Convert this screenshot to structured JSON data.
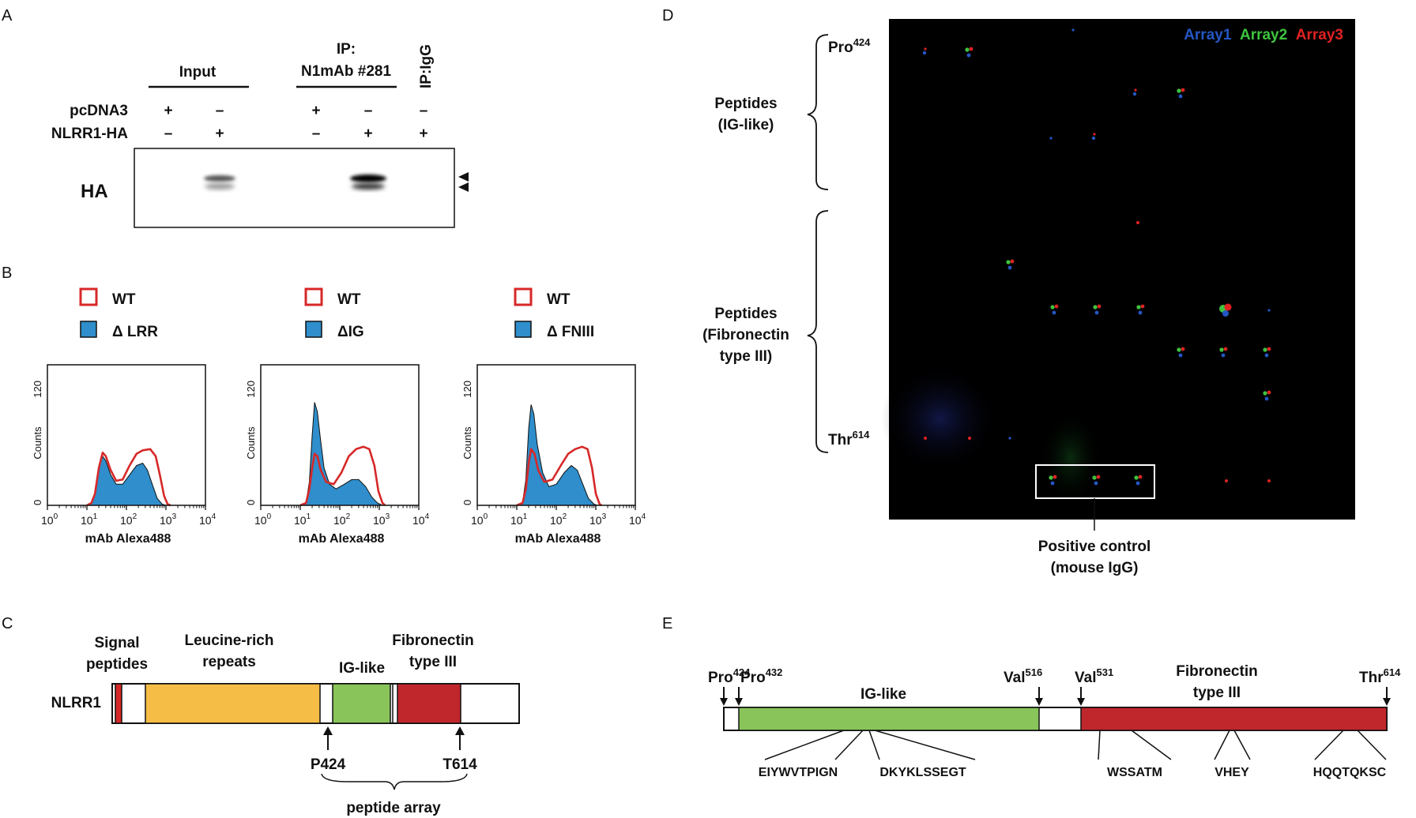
{
  "panel_letters": [
    "A",
    "B",
    "C",
    "D",
    "E"
  ],
  "panel_a": {
    "input_label": "Input",
    "ip_label_1": "IP:",
    "ip_label_2": "N1mAb #281",
    "ipigg_label": "IP:IgG",
    "row_labels": [
      "pcDNA3",
      "NLRR1-HA"
    ],
    "signs": [
      [
        "+",
        "–",
        "+",
        "–",
        "–"
      ],
      [
        "–",
        "+",
        "–",
        "+",
        "+"
      ]
    ],
    "blot_label": "HA",
    "band_lanes": [
      2,
      4
    ]
  },
  "panel_b": {
    "histograms": [
      {
        "legend_wt": "WT",
        "legend_mut": "Δ LRR",
        "counts_label": "Counts",
        "xlabel": "mAb Alexa488",
        "mut_profile": [
          [
            10,
            0
          ],
          [
            13,
            2
          ],
          [
            16,
            10
          ],
          [
            20,
            32
          ],
          [
            25,
            42
          ],
          [
            30,
            38
          ],
          [
            40,
            26
          ],
          [
            55,
            18
          ],
          [
            80,
            18
          ],
          [
            120,
            26
          ],
          [
            180,
            34
          ],
          [
            260,
            36
          ],
          [
            340,
            30
          ],
          [
            450,
            18
          ],
          [
            600,
            6
          ],
          [
            800,
            1
          ],
          [
            1000,
            0
          ]
        ],
        "wt_profile": [
          [
            10,
            0
          ],
          [
            13,
            2
          ],
          [
            16,
            10
          ],
          [
            20,
            32
          ],
          [
            25,
            45
          ],
          [
            30,
            42
          ],
          [
            40,
            30
          ],
          [
            55,
            21
          ],
          [
            80,
            22
          ],
          [
            120,
            34
          ],
          [
            180,
            44
          ],
          [
            260,
            47
          ],
          [
            400,
            48
          ],
          [
            550,
            42
          ],
          [
            700,
            26
          ],
          [
            900,
            8
          ],
          [
            1100,
            1
          ],
          [
            1300,
            0
          ]
        ]
      },
      {
        "legend_wt": "WT",
        "legend_mut": "ΔIG",
        "counts_label": "Counts",
        "xlabel": "mAb Alexa488",
        "mut_profile": [
          [
            10,
            0
          ],
          [
            14,
            2
          ],
          [
            17,
            20
          ],
          [
            20,
            60
          ],
          [
            23,
            88
          ],
          [
            27,
            80
          ],
          [
            32,
            58
          ],
          [
            40,
            32
          ],
          [
            55,
            18
          ],
          [
            80,
            14
          ],
          [
            130,
            18
          ],
          [
            200,
            22
          ],
          [
            300,
            22
          ],
          [
            450,
            16
          ],
          [
            650,
            7
          ],
          [
            900,
            2
          ],
          [
            1200,
            0
          ]
        ],
        "wt_profile": [
          [
            10,
            0
          ],
          [
            14,
            2
          ],
          [
            17,
            14
          ],
          [
            20,
            32
          ],
          [
            23,
            44
          ],
          [
            27,
            42
          ],
          [
            33,
            30
          ],
          [
            45,
            20
          ],
          [
            70,
            18
          ],
          [
            110,
            28
          ],
          [
            170,
            42
          ],
          [
            260,
            48
          ],
          [
            400,
            50
          ],
          [
            560,
            48
          ],
          [
            750,
            34
          ],
          [
            950,
            12
          ],
          [
            1200,
            2
          ],
          [
            1400,
            0
          ]
        ]
      },
      {
        "legend_wt": "WT",
        "legend_mut": "Δ FNIII",
        "counts_label": "Counts",
        "xlabel": "mAb Alexa488",
        "mut_profile": [
          [
            10,
            0
          ],
          [
            14,
            2
          ],
          [
            17,
            22
          ],
          [
            20,
            66
          ],
          [
            23,
            86
          ],
          [
            27,
            78
          ],
          [
            33,
            52
          ],
          [
            45,
            28
          ],
          [
            65,
            16
          ],
          [
            100,
            18
          ],
          [
            160,
            28
          ],
          [
            240,
            34
          ],
          [
            340,
            30
          ],
          [
            470,
            18
          ],
          [
            650,
            6
          ],
          [
            900,
            1
          ],
          [
            1100,
            0
          ]
        ],
        "wt_profile": [
          [
            10,
            0
          ],
          [
            14,
            2
          ],
          [
            17,
            14
          ],
          [
            20,
            36
          ],
          [
            23,
            48
          ],
          [
            28,
            44
          ],
          [
            35,
            30
          ],
          [
            50,
            20
          ],
          [
            80,
            22
          ],
          [
            130,
            34
          ],
          [
            200,
            44
          ],
          [
            300,
            48
          ],
          [
            450,
            50
          ],
          [
            620,
            48
          ],
          [
            800,
            32
          ],
          [
            1000,
            10
          ],
          [
            1250,
            1
          ],
          [
            1400,
            0
          ]
        ]
      }
    ],
    "ymax_label": "120",
    "ymin_label": "0",
    "xtick_bases": [
      "10",
      "10",
      "10",
      "10",
      "10"
    ],
    "xtick_exps": [
      "0",
      "1",
      "2",
      "3",
      "4"
    ]
  },
  "panel_c": {
    "title_signal": [
      "Signal",
      "peptides"
    ],
    "title_lrr": [
      "Leucine-rich",
      "repeats"
    ],
    "title_ig": "IG-like",
    "title_fn": [
      "Fibronectin",
      "type III"
    ],
    "protein_name": "NLRR1",
    "marker_p": "P424",
    "marker_t": "T614",
    "array_label": "peptide array",
    "colors": {
      "signal": "#d72828",
      "lrr": "#f5bd45",
      "ig": "#88c45a",
      "fn": "#c0272d"
    }
  },
  "panel_d": {
    "legend": [
      {
        "label": "Array1",
        "color": "#2457c4"
      },
      {
        "label": "Array2",
        "color": "#3ec43e"
      },
      {
        "label": "Array3",
        "color": "#e02222"
      }
    ],
    "start_label": "Pro",
    "start_sup": "424",
    "end_label": "Thr",
    "end_sup": "614",
    "group1": [
      "Peptides",
      "(IG-like)"
    ],
    "group2": [
      "Peptides",
      "(Fibronectin",
      "type III)"
    ],
    "control": [
      "Positive control",
      "(mouse IgG)"
    ]
  },
  "panel_e": {
    "markers": [
      {
        "name": "Pro",
        "sup": "424"
      },
      {
        "name": "Pro",
        "sup": "432"
      },
      {
        "name": "Val",
        "sup": "516"
      },
      {
        "name": "Val",
        "sup": "531"
      },
      {
        "name": "Thr",
        "sup": "614"
      }
    ],
    "ig_label": "IG-like",
    "fn_label": [
      "Fibronectin",
      "type III"
    ],
    "epitopes": [
      "EIYWVTPIGN",
      "DKYKLSSEGT",
      "WSSATM",
      "VHEY",
      "HQQTQKSC"
    ],
    "colors": {
      "ig": "#88c45a",
      "fn": "#c0272d"
    }
  }
}
